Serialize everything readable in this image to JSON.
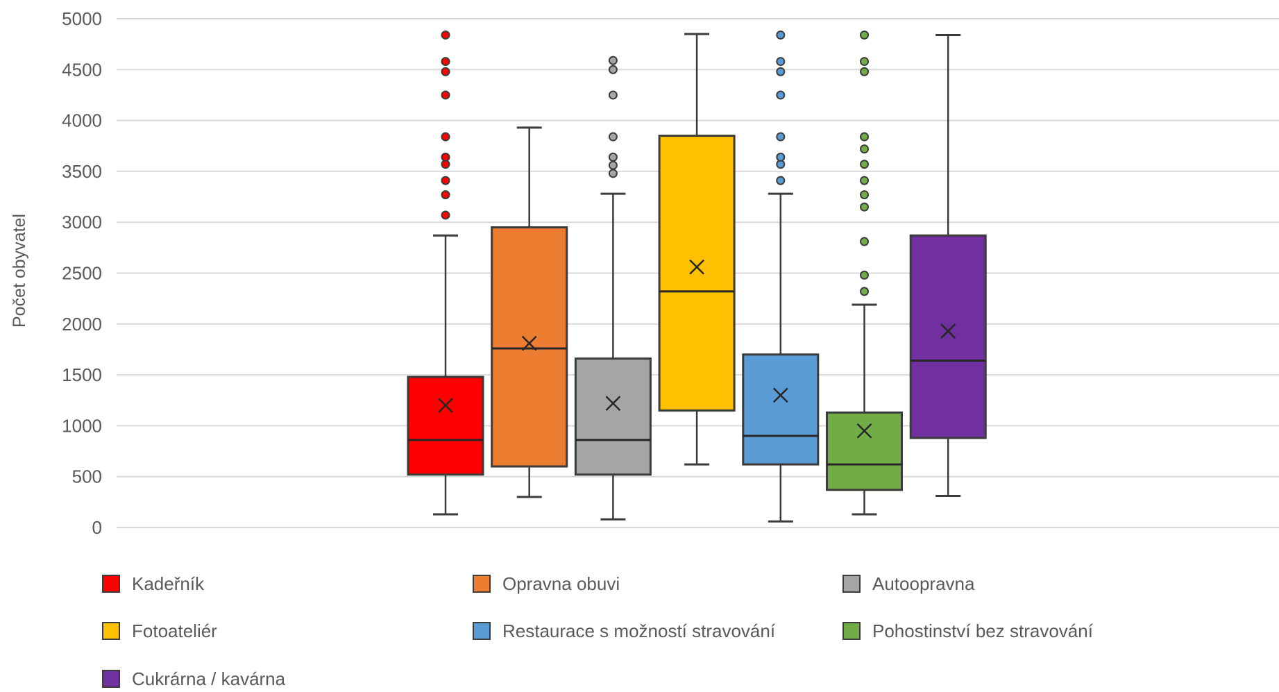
{
  "chart_data": {
    "type": "box",
    "ylabel": "Počet obyvatel",
    "xlabel": "",
    "ylim": [
      0,
      5000
    ],
    "yticks": [
      0,
      500,
      1000,
      1500,
      2000,
      2500,
      3000,
      3500,
      4000,
      4500,
      5000
    ],
    "grid": true,
    "legend_position": "bottom",
    "series": [
      {
        "name": "Kadeřník",
        "color": "#FF0000",
        "whisker_low": 130,
        "q1": 520,
        "median": 860,
        "q3": 1480,
        "whisker_high": 2870,
        "mean": 1200,
        "outliers": [
          3070,
          3270,
          3410,
          3570,
          3640,
          3840,
          4250,
          4480,
          4580,
          4840
        ]
      },
      {
        "name": "Opravna obuvi",
        "color": "#ED7D31",
        "whisker_low": 300,
        "q1": 600,
        "median": 1760,
        "q3": 2950,
        "whisker_high": 3930,
        "mean": 1810,
        "outliers": []
      },
      {
        "name": "Autoopravna",
        "color": "#A5A5A5",
        "whisker_low": 80,
        "q1": 520,
        "median": 860,
        "q3": 1660,
        "whisker_high": 3280,
        "mean": 1220,
        "outliers": [
          3480,
          3560,
          3640,
          3840,
          4250,
          4500,
          4590
        ]
      },
      {
        "name": "Fotoateliér",
        "color": "#FFC000",
        "whisker_low": 620,
        "q1": 1150,
        "median": 2320,
        "q3": 3850,
        "whisker_high": 4850,
        "mean": 2560,
        "outliers": []
      },
      {
        "name": "Restaurace s možností stravování",
        "color": "#5B9BD5",
        "whisker_low": 60,
        "q1": 620,
        "median": 900,
        "q3": 1700,
        "whisker_high": 3280,
        "mean": 1300,
        "outliers": [
          3410,
          3570,
          3640,
          3840,
          4250,
          4480,
          4580,
          4840
        ]
      },
      {
        "name": "Pohostinství bez stravování",
        "color": "#70AD47",
        "whisker_low": 130,
        "q1": 370,
        "median": 620,
        "q3": 1130,
        "whisker_high": 2190,
        "mean": 950,
        "outliers": [
          2320,
          2480,
          2810,
          3150,
          3270,
          3410,
          3570,
          3720,
          3840,
          4480,
          4580,
          4840
        ]
      },
      {
        "name": "Cukrárna / kavárna",
        "color": "#7030A0",
        "whisker_low": 310,
        "q1": 880,
        "median": 1640,
        "q3": 2870,
        "whisker_high": 4840,
        "mean": 1930,
        "outliers": []
      }
    ]
  }
}
